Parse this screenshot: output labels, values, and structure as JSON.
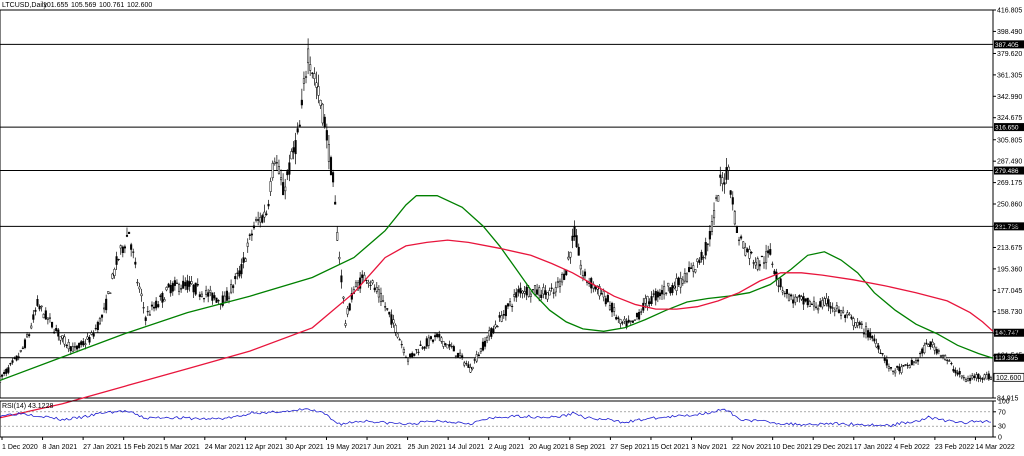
{
  "chart_data": {
    "type": "candlestick",
    "title": "LTCUSD,Daily",
    "ohlc_summary": [
      "101.655",
      "105.569",
      "100.761",
      "102.600"
    ],
    "price_axis": {
      "ylim": [
        84.915,
        416.805
      ],
      "ticks": [
        416.805,
        398.49,
        379.62,
        361.305,
        342.99,
        324.675,
        305.805,
        287.49,
        269.175,
        250.86,
        231.99,
        213.675,
        195.36,
        177.045,
        158.73,
        140.415,
        121.545,
        84.915
      ],
      "tick_labels": [
        "416.805",
        "398.490",
        "379.620",
        "361.305",
        "342.990",
        "324.675",
        "305.805",
        "287.490",
        "269.175",
        "250.860",
        "231.990",
        "213.675",
        "195.360",
        "177.045",
        "158.730",
        "140.415",
        "121.545",
        "84.915"
      ]
    },
    "horizontal_levels": [
      {
        "value": 387.405,
        "label": "387.405"
      },
      {
        "value": 316.65,
        "label": "316.650"
      },
      {
        "value": 279.486,
        "label": "279.486"
      },
      {
        "value": 231.738,
        "label": "231.738"
      },
      {
        "value": 140.747,
        "label": "140.747"
      },
      {
        "value": 119.395,
        "label": "119.395"
      }
    ],
    "last_price": {
      "value": 102.6,
      "label": "102.600"
    },
    "x_dates": [
      "1 Dec 2020",
      "8 Jan 2021",
      "27 Jan 2021",
      "15 Feb 2021",
      "5 Mar 2021",
      "24 Mar 2021",
      "12 Apr 2021",
      "30 Apr 2021",
      "19 May 2021",
      "7 Jun 2021",
      "25 Jun 2021",
      "14 Jul 2021",
      "2 Aug 2021",
      "20 Aug 2021",
      "8 Sep 2021",
      "27 Sep 2021",
      "15 Oct 2021",
      "3 Nov 2021",
      "22 Nov 2021",
      "10 Dec 2021",
      "29 Dec 2021",
      "17 Jan 2022",
      "4 Feb 2022",
      "23 Feb 2022",
      "14 Mar 2022"
    ],
    "series": [
      {
        "name": "",
        "type": "moving_average",
        "color": "#008000",
        "points": [
          [
            0,
            100
          ],
          [
            30,
            120
          ],
          [
            60,
            140
          ],
          [
            90,
            158
          ],
          [
            120,
            172
          ],
          [
            150,
            188
          ],
          [
            170,
            205
          ],
          [
            185,
            228
          ],
          [
            195,
            250
          ],
          [
            200,
            258
          ],
          [
            210,
            258
          ],
          [
            222,
            248
          ],
          [
            232,
            232
          ],
          [
            240,
            215
          ],
          [
            248,
            195
          ],
          [
            256,
            175
          ],
          [
            264,
            160
          ],
          [
            272,
            150
          ],
          [
            280,
            144
          ],
          [
            290,
            142
          ],
          [
            300,
            145
          ],
          [
            310,
            152
          ],
          [
            320,
            160
          ],
          [
            330,
            167
          ],
          [
            340,
            170
          ],
          [
            350,
            172
          ],
          [
            360,
            175
          ],
          [
            370,
            182
          ],
          [
            380,
            195
          ],
          [
            388,
            207
          ],
          [
            396,
            210
          ],
          [
            404,
            203
          ],
          [
            412,
            192
          ],
          [
            420,
            175
          ],
          [
            430,
            160
          ],
          [
            440,
            148
          ],
          [
            450,
            140
          ],
          [
            460,
            130
          ],
          [
            470,
            123
          ],
          [
            477,
            119
          ]
        ]
      },
      {
        "name": "",
        "type": "moving_average",
        "color": "#e8153c",
        "points": [
          [
            0,
            68
          ],
          [
            30,
            80
          ],
          [
            60,
            95
          ],
          [
            90,
            110
          ],
          [
            120,
            125
          ],
          [
            150,
            145
          ],
          [
            170,
            175
          ],
          [
            185,
            205
          ],
          [
            195,
            215
          ],
          [
            205,
            218
          ],
          [
            215,
            220
          ],
          [
            225,
            218
          ],
          [
            240,
            213
          ],
          [
            255,
            207
          ],
          [
            265,
            200
          ],
          [
            275,
            192
          ],
          [
            285,
            182
          ],
          [
            295,
            172
          ],
          [
            305,
            165
          ],
          [
            315,
            161
          ],
          [
            325,
            161
          ],
          [
            335,
            163
          ],
          [
            345,
            168
          ],
          [
            355,
            175
          ],
          [
            365,
            185
          ],
          [
            375,
            192
          ],
          [
            385,
            192
          ],
          [
            395,
            190
          ],
          [
            410,
            186
          ],
          [
            425,
            181
          ],
          [
            440,
            175
          ],
          [
            455,
            168
          ],
          [
            466,
            158
          ],
          [
            472,
            150
          ],
          [
            477,
            142
          ]
        ]
      },
      {
        "name": "",
        "type": "price_path",
        "color": "#000000",
        "points": [
          [
            0,
            101
          ],
          [
            6,
            114
          ],
          [
            10,
            123
          ],
          [
            14,
            140
          ],
          [
            18,
            165
          ],
          [
            24,
            150
          ],
          [
            30,
            135
          ],
          [
            36,
            126
          ],
          [
            44,
            137
          ],
          [
            50,
            158
          ],
          [
            56,
            200
          ],
          [
            62,
            228
          ],
          [
            66,
            185
          ],
          [
            70,
            155
          ],
          [
            76,
            166
          ],
          [
            82,
            180
          ],
          [
            90,
            182
          ],
          [
            100,
            173
          ],
          [
            108,
            168
          ],
          [
            116,
            195
          ],
          [
            122,
            232
          ],
          [
            128,
            244
          ],
          [
            132,
            292
          ],
          [
            136,
            262
          ],
          [
            140,
            288
          ],
          [
            144,
            316
          ],
          [
            148,
            382
          ],
          [
            152,
            352
          ],
          [
            156,
            322
          ],
          [
            160,
            270
          ],
          [
            162,
            225
          ],
          [
            164,
            188
          ],
          [
            166,
            150
          ],
          [
            170,
            178
          ],
          [
            176,
            190
          ],
          [
            184,
            167
          ],
          [
            190,
            145
          ],
          [
            196,
            118
          ],
          [
            202,
            129
          ],
          [
            210,
            137
          ],
          [
            218,
            126
          ],
          [
            226,
            110
          ],
          [
            234,
            136
          ],
          [
            242,
            157
          ],
          [
            250,
            178
          ],
          [
            258,
            176
          ],
          [
            266,
            174
          ],
          [
            272,
            195
          ],
          [
            276,
            227
          ],
          [
            280,
            189
          ],
          [
            286,
            180
          ],
          [
            292,
            168
          ],
          [
            298,
            148
          ],
          [
            304,
            148
          ],
          [
            310,
            166
          ],
          [
            318,
            176
          ],
          [
            326,
            183
          ],
          [
            334,
            197
          ],
          [
            340,
            215
          ],
          [
            346,
            268
          ],
          [
            350,
            280
          ],
          [
            354,
            227
          ],
          [
            358,
            213
          ],
          [
            364,
            200
          ],
          [
            370,
            208
          ],
          [
            374,
            184
          ],
          [
            380,
            170
          ],
          [
            386,
            167
          ],
          [
            392,
            164
          ],
          [
            398,
            166
          ],
          [
            404,
            158
          ],
          [
            410,
            150
          ],
          [
            416,
            142
          ],
          [
            422,
            130
          ],
          [
            428,
            108
          ],
          [
            434,
            110
          ],
          [
            440,
            116
          ],
          [
            446,
            132
          ],
          [
            452,
            124
          ],
          [
            458,
            110
          ],
          [
            464,
            100
          ],
          [
            470,
            104
          ],
          [
            477,
            102.6
          ]
        ]
      }
    ],
    "rsi": {
      "label": "RSI(14) 43.1228",
      "ylim": [
        0,
        100
      ],
      "ticks": [
        100,
        70,
        30,
        0
      ],
      "tick_labels": [
        "100",
        "70",
        "30",
        "0"
      ],
      "levels": [
        70,
        30
      ],
      "values": [
        [
          0,
          60
        ],
        [
          10,
          66
        ],
        [
          20,
          58
        ],
        [
          30,
          48
        ],
        [
          40,
          55
        ],
        [
          50,
          68
        ],
        [
          60,
          72
        ],
        [
          64,
          65
        ],
        [
          70,
          52
        ],
        [
          80,
          55
        ],
        [
          90,
          52
        ],
        [
          100,
          50
        ],
        [
          108,
          52
        ],
        [
          116,
          58
        ],
        [
          122,
          70
        ],
        [
          128,
          65
        ],
        [
          134,
          72
        ],
        [
          140,
          70
        ],
        [
          146,
          78
        ],
        [
          150,
          74
        ],
        [
          156,
          64
        ],
        [
          160,
          45
        ],
        [
          164,
          36
        ],
        [
          170,
          42
        ],
        [
          176,
          45
        ],
        [
          184,
          40
        ],
        [
          190,
          38
        ],
        [
          196,
          35
        ],
        [
          202,
          40
        ],
        [
          210,
          45
        ],
        [
          218,
          42
        ],
        [
          226,
          38
        ],
        [
          234,
          50
        ],
        [
          242,
          55
        ],
        [
          250,
          58
        ],
        [
          258,
          56
        ],
        [
          266,
          55
        ],
        [
          272,
          60
        ],
        [
          276,
          68
        ],
        [
          280,
          55
        ],
        [
          286,
          50
        ],
        [
          292,
          48
        ],
        [
          298,
          42
        ],
        [
          304,
          44
        ],
        [
          310,
          50
        ],
        [
          318,
          54
        ],
        [
          326,
          58
        ],
        [
          334,
          62
        ],
        [
          340,
          68
        ],
        [
          346,
          75
        ],
        [
          350,
          72
        ],
        [
          354,
          52
        ],
        [
          358,
          48
        ],
        [
          364,
          44
        ],
        [
          370,
          42
        ],
        [
          374,
          38
        ],
        [
          380,
          36
        ],
        [
          386,
          35
        ],
        [
          392,
          36
        ],
        [
          398,
          38
        ],
        [
          404,
          36
        ],
        [
          410,
          36
        ],
        [
          416,
          34
        ],
        [
          422,
          33
        ],
        [
          428,
          32
        ],
        [
          434,
          40
        ],
        [
          440,
          44
        ],
        [
          446,
          55
        ],
        [
          452,
          48
        ],
        [
          458,
          42
        ],
        [
          464,
          40
        ],
        [
          470,
          44
        ],
        [
          477,
          43
        ]
      ]
    }
  }
}
